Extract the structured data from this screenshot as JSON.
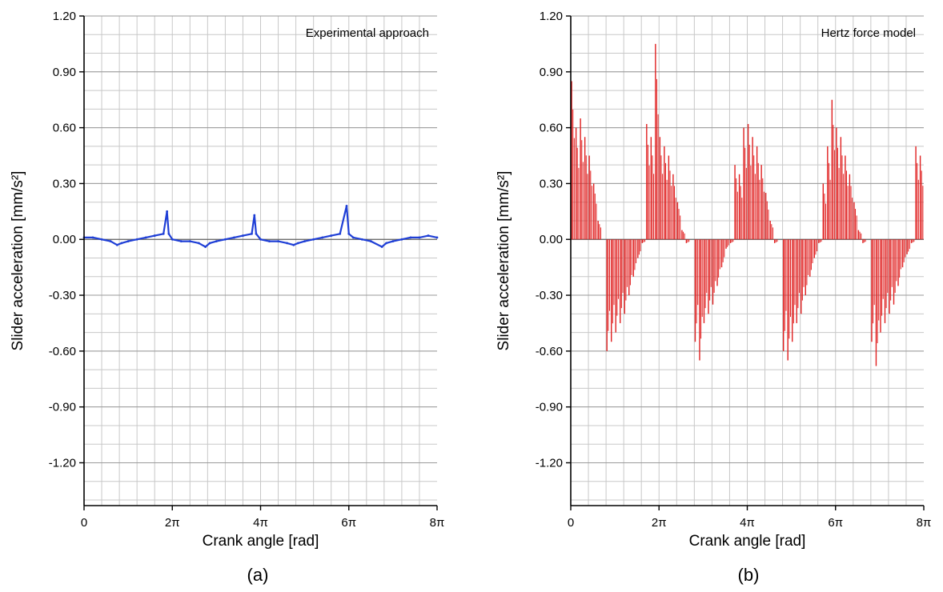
{
  "chart_data": [
    {
      "panel_label": "(a)",
      "type": "line",
      "annotation": "Experimental approach",
      "xlabel": "Crank angle [rad]",
      "ylabel": "Slider acceleration [mm/s²]",
      "xlim": [
        0,
        8
      ],
      "x_unit": "π",
      "ylim": [
        -1.43,
        1.2
      ],
      "x_ticks": [
        0,
        2,
        4,
        6,
        8
      ],
      "x_tick_labels": [
        "0",
        "2π",
        "4π",
        "6π",
        "8π"
      ],
      "y_ticks": [
        1.2,
        0.9,
        0.6,
        0.3,
        0.0,
        -0.3,
        -0.6,
        -0.9,
        -1.2
      ],
      "y_tick_labels": [
        "1.20",
        "0.90",
        "0.60",
        "0.30",
        "0.00",
        "-0.30",
        "-0.60",
        "-0.90",
        "-1.20"
      ],
      "grid": true,
      "color": "#1f3fd6",
      "series": [
        {
          "x": [
            0,
            0.2,
            0.4,
            0.6,
            0.75,
            0.85,
            1.0,
            1.2,
            1.4,
            1.6,
            1.8,
            1.88,
            1.92,
            2.0,
            2.2,
            2.4,
            2.6,
            2.75,
            2.85,
            3.0,
            3.2,
            3.4,
            3.6,
            3.8,
            3.86,
            3.9,
            4.0,
            4.2,
            4.4,
            4.6,
            4.75,
            4.85,
            5.0,
            5.2,
            5.4,
            5.6,
            5.8,
            5.95,
            6.0,
            6.1,
            6.3,
            6.5,
            6.75,
            6.85,
            7.0,
            7.2,
            7.4,
            7.6,
            7.8,
            8.0
          ],
          "y": [
            0.01,
            0.01,
            0.0,
            -0.01,
            -0.03,
            -0.02,
            -0.01,
            0.0,
            0.01,
            0.02,
            0.03,
            0.15,
            0.03,
            0.0,
            -0.01,
            -0.01,
            -0.02,
            -0.04,
            -0.02,
            -0.01,
            0.0,
            0.01,
            0.02,
            0.03,
            0.13,
            0.03,
            0.0,
            -0.01,
            -0.01,
            -0.02,
            -0.03,
            -0.02,
            -0.01,
            0.0,
            0.01,
            0.02,
            0.03,
            0.18,
            0.03,
            0.01,
            0.0,
            -0.01,
            -0.04,
            -0.02,
            -0.01,
            0.0,
            0.01,
            0.01,
            0.02,
            0.01
          ]
        }
      ]
    },
    {
      "panel_label": "(b)",
      "type": "bar",
      "annotation": "Hertz force model",
      "xlabel": "Crank angle [rad]",
      "ylabel": "Slider acceleration [mm/s²]",
      "xlim": [
        0,
        8
      ],
      "x_unit": "π",
      "ylim": [
        -1.43,
        1.2
      ],
      "x_ticks": [
        0,
        2,
        4,
        6,
        8
      ],
      "x_tick_labels": [
        "0",
        "2π",
        "4π",
        "6π",
        "8π"
      ],
      "y_ticks": [
        1.2,
        0.9,
        0.6,
        0.3,
        0.0,
        -0.3,
        -0.6,
        -0.9,
        -1.2
      ],
      "y_tick_labels": [
        "1.20",
        "0.90",
        "0.60",
        "0.30",
        "0.00",
        "-0.30",
        "-0.60",
        "-0.90",
        "-1.20"
      ],
      "grid": true,
      "color": "#e02020",
      "series": [
        {
          "x": [
            0.05,
            0.15,
            0.25,
            0.35,
            0.45,
            0.55,
            0.65,
            0.85,
            0.95,
            1.05,
            1.15,
            1.25,
            1.35,
            1.45,
            1.55,
            1.65,
            1.75,
            1.85,
            1.95,
            2.05,
            2.15,
            2.25,
            2.35,
            2.45,
            2.55,
            2.65,
            2.85,
            2.95,
            3.05,
            3.15,
            3.25,
            3.35,
            3.45,
            3.55,
            3.65,
            3.75,
            3.85,
            3.95,
            4.05,
            4.15,
            4.25,
            4.35,
            4.45,
            4.55,
            4.65,
            4.85,
            4.95,
            5.05,
            5.15,
            5.25,
            5.35,
            5.45,
            5.55,
            5.65,
            5.75,
            5.85,
            5.95,
            6.05,
            6.15,
            6.25,
            6.35,
            6.45,
            6.55,
            6.65,
            6.85,
            6.95,
            7.05,
            7.15,
            7.25,
            7.35,
            7.45,
            7.55,
            7.65,
            7.75,
            7.85,
            7.95
          ],
          "y": [
            0.85,
            0.6,
            0.65,
            0.55,
            0.45,
            0.3,
            0.1,
            -0.6,
            -0.55,
            -0.5,
            -0.45,
            -0.4,
            -0.3,
            -0.2,
            -0.1,
            -0.02,
            0.62,
            0.55,
            1.05,
            0.55,
            0.5,
            0.45,
            0.35,
            0.2,
            0.05,
            -0.02,
            -0.55,
            -0.65,
            -0.45,
            -0.4,
            -0.35,
            -0.25,
            -0.15,
            -0.05,
            -0.02,
            0.4,
            0.35,
            0.6,
            0.62,
            0.55,
            0.5,
            0.4,
            0.25,
            0.1,
            -0.02,
            -0.6,
            -0.65,
            -0.55,
            -0.45,
            -0.4,
            -0.3,
            -0.2,
            -0.1,
            -0.02,
            0.3,
            0.5,
            0.75,
            0.6,
            0.55,
            0.45,
            0.35,
            0.2,
            0.05,
            -0.02,
            -0.55,
            -0.68,
            -0.5,
            -0.45,
            -0.4,
            -0.35,
            -0.25,
            -0.15,
            -0.08,
            -0.02,
            0.5,
            0.45
          ]
        }
      ]
    }
  ]
}
